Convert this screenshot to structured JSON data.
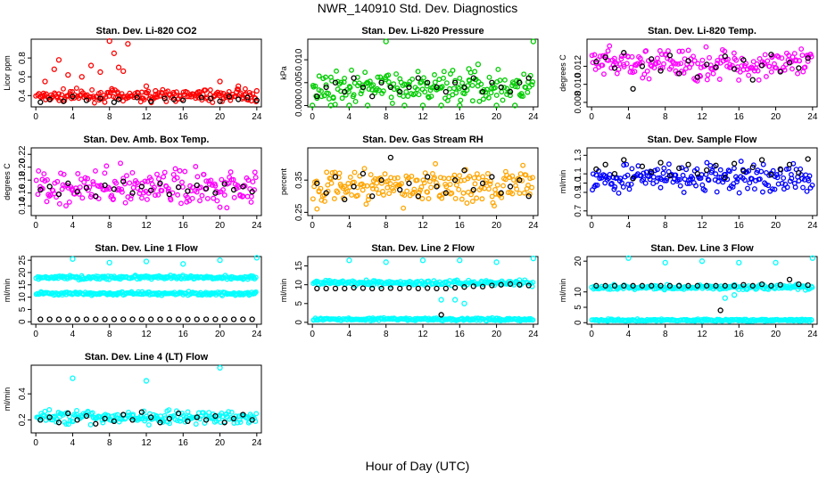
{
  "figure": {
    "title": "NWR_140910  Std. Dev. Diagnostics",
    "xlabel": "Hour of Day (UTC)"
  },
  "colors": {
    "reference": "#000000",
    "co2": "#ff0000",
    "pressure": "#00cc00",
    "temp": "#ff00ff",
    "rh": "#ffa500",
    "sample_flow": "#0000ff",
    "line_flow": "#00ffff"
  },
  "chart_data": [
    {
      "type": "scatter",
      "title": "Stan. Dev. Li-820 CO2",
      "ylabel": "Licor ppm",
      "xlim": [
        -0.5,
        24.5
      ],
      "ylim": [
        0.28,
        1.0
      ],
      "xticks": [
        "0",
        "4",
        "8",
        "12",
        "16",
        "20",
        "24"
      ],
      "yticks": [
        "0.4",
        "0.6",
        "0.8"
      ],
      "color_key": "co2",
      "bands": [
        {
          "center": 0.4,
          "spread": 0.05
        }
      ],
      "series": [
        {
          "values_x": [
            1,
            2,
            2.5,
            3.5,
            5,
            6,
            7,
            8,
            8.5,
            9,
            9.5,
            10,
            12,
            13,
            20,
            22,
            24
          ],
          "values_y": [
            0.55,
            0.68,
            0.78,
            0.62,
            0.6,
            0.72,
            0.65,
            0.98,
            0.85,
            0.7,
            0.66,
            0.95,
            0.5,
            0.45,
            0.55,
            0.5,
            0.45
          ]
        },
        {
          "values_x": [
            0.5,
            1.5,
            3,
            4,
            5.5,
            7,
            8.5,
            9,
            11,
            12.5,
            14,
            15,
            16,
            18,
            19,
            20,
            21,
            22,
            23,
            24
          ],
          "values_y": [
            0.33,
            0.36,
            0.34,
            0.39,
            0.35,
            0.37,
            0.33,
            0.36,
            0.38,
            0.34,
            0.37,
            0.36,
            0.35,
            0.38,
            0.37,
            0.34,
            0.39,
            0.36,
            0.38,
            0.35
          ],
          "role": "reference"
        }
      ]
    },
    {
      "type": "scatter",
      "title": "Stan. Dev. Li-820 Pressure",
      "ylabel": "kPa",
      "xlim": [
        -0.5,
        24.5
      ],
      "ylim": [
        -0.0003,
        0.0145
      ],
      "xticks": [
        "0",
        "4",
        "8",
        "12",
        "16",
        "20",
        "24"
      ],
      "yticks": [
        "0.000",
        "0.005",
        "0.010"
      ],
      "color_key": "pressure",
      "bands": [
        {
          "center": 0.004,
          "spread": 0.0025
        }
      ],
      "series": [
        {
          "values_x": [
            0,
            2,
            4,
            6,
            8,
            10,
            12,
            14,
            16,
            17,
            18,
            20,
            22,
            24
          ],
          "values_y": [
            0,
            0,
            0,
            0,
            0.014,
            0,
            0,
            0,
            0,
            0.008,
            0.009,
            0,
            0,
            0.014
          ]
        },
        {
          "values_x": [
            0.5,
            1.5,
            2.5,
            3.5,
            4.5,
            5.5,
            6.5,
            7.5,
            8.5,
            9.5,
            10.5,
            11.5,
            12.5,
            13.5,
            14.5,
            15.5,
            16.5,
            17.5,
            18.5,
            19.5,
            20.5,
            21.5,
            22.5,
            23.5
          ],
          "values_y": [
            0.002,
            0.004,
            0.005,
            0.003,
            0.006,
            0.004,
            0.002,
            0.005,
            0.004,
            0.003,
            0.004,
            0.006,
            0.005,
            0.004,
            0.003,
            0.005,
            0.004,
            0.006,
            0.003,
            0.005,
            0.004,
            0.003,
            0.005,
            0.006
          ],
          "role": "reference"
        }
      ]
    },
    {
      "type": "scatter",
      "title": "Stan. Dev. Li-820 Temp.",
      "ylabel": "degrees C",
      "xlim": [
        -0.5,
        24.5
      ],
      "ylim": [
        0.0075,
        0.015
      ],
      "xticks": [
        "0",
        "4",
        "8",
        "12",
        "16",
        "20",
        "24"
      ],
      "yticks": [
        "0.008",
        "0.010",
        "0.012"
      ],
      "color_key": "temp",
      "bands": [
        {
          "center": 0.0122,
          "spread": 0.0014
        }
      ],
      "series": [
        {
          "values_x": [
            0.5,
            1.5,
            2.5,
            3.5,
            4.5,
            5.5,
            6.5,
            7.5,
            8.5,
            9.5,
            10.5,
            11.5,
            12.5,
            13.5,
            14.5,
            15.5,
            16.5,
            17.5,
            18.5,
            19.5,
            20.5,
            21.5,
            22.5,
            23.5
          ],
          "values_y": [
            0.0125,
            0.013,
            0.0118,
            0.0135,
            0.0095,
            0.012,
            0.0128,
            0.0115,
            0.0132,
            0.0112,
            0.0126,
            0.0108,
            0.0122,
            0.0119,
            0.0131,
            0.0117,
            0.0127,
            0.0105,
            0.0121,
            0.0133,
            0.0114,
            0.0124,
            0.0118,
            0.0129
          ],
          "role": "reference"
        }
      ]
    },
    {
      "type": "scatter",
      "title": "Stan. Dev. Amb. Box Temp.",
      "ylabel": "degrees C",
      "xlim": [
        -0.5,
        24.5
      ],
      "ylim": [
        0.125,
        0.23
      ],
      "xticks": [
        "0",
        "4",
        "8",
        "12",
        "16",
        "20",
        "24"
      ],
      "yticks": [
        "0.14",
        "0.16",
        "0.18",
        "0.20",
        "0.22"
      ],
      "color_key": "temp",
      "bands": [
        {
          "center": 0.17,
          "spread": 0.022
        }
      ],
      "series": [
        {
          "values_x": [
            0.5,
            1.5,
            2.5,
            3.5,
            4.5,
            5.5,
            6.5,
            7.5,
            8.5,
            9.5,
            10.5,
            11.5,
            12.5,
            13.5,
            14.5,
            15.5,
            16.5,
            17.5,
            18.5,
            19.5,
            20.5,
            21.5,
            22.5,
            23.5
          ],
          "values_y": [
            0.165,
            0.17,
            0.158,
            0.175,
            0.162,
            0.168,
            0.155,
            0.172,
            0.166,
            0.178,
            0.16,
            0.17,
            0.164,
            0.175,
            0.158,
            0.169,
            0.163,
            0.172,
            0.167,
            0.16,
            0.174,
            0.165,
            0.17,
            0.162
          ],
          "role": "reference"
        }
      ]
    },
    {
      "type": "scatter",
      "title": "Stan. Dev. Gas Stream RH",
      "ylabel": "percent",
      "xlim": [
        -0.5,
        24.5
      ],
      "ylim": [
        0.24,
        0.45
      ],
      "xticks": [
        "0",
        "4",
        "8",
        "12",
        "16",
        "20",
        "24"
      ],
      "yticks": [
        "0.25",
        "0.35"
      ],
      "color_key": "rh",
      "bands": [
        {
          "center": 0.33,
          "spread": 0.045
        }
      ],
      "series": [
        {
          "values_x": [
            0.5,
            1.5,
            2.5,
            3.5,
            4.5,
            5.5,
            6.5,
            7.5,
            8.5,
            9.5,
            10.5,
            11.5,
            12.5,
            13.5,
            14.5,
            15.5,
            16.5,
            17.5,
            18.5,
            19.5,
            20.5,
            21.5,
            22.5,
            23.5
          ],
          "values_y": [
            0.34,
            0.31,
            0.36,
            0.29,
            0.33,
            0.37,
            0.3,
            0.35,
            0.42,
            0.32,
            0.34,
            0.3,
            0.36,
            0.33,
            0.31,
            0.35,
            0.38,
            0.32,
            0.34,
            0.36,
            0.31,
            0.33,
            0.35,
            0.3
          ],
          "role": "reference"
        }
      ]
    },
    {
      "type": "scatter",
      "title": "Stan. Dev. Sample Flow",
      "ylabel": "ml/min",
      "xlim": [
        -0.5,
        24.5
      ],
      "ylim": [
        0.65,
        1.38
      ],
      "xticks": [
        "0",
        "4",
        "8",
        "12",
        "16",
        "20",
        "24"
      ],
      "yticks": [
        "0.7",
        "0.9",
        "1.0",
        "1.1",
        "1.3"
      ],
      "color_key": "sample_flow",
      "bands": [
        {
          "center": 1.05,
          "spread": 0.12
        }
      ],
      "series": [
        {
          "values_x": [
            0.5,
            1.5,
            2.5,
            3.5,
            4.5,
            5.5,
            6.5,
            7.5,
            8.5,
            9.5,
            10.5,
            11.5,
            12.5,
            13.5,
            14.5,
            15.5,
            16.5,
            17.5,
            18.5,
            19.5,
            20.5,
            21.5,
            22.5,
            23.5
          ],
          "values_y": [
            1.15,
            1.2,
            1.1,
            1.25,
            1.05,
            1.18,
            1.12,
            1.22,
            1.08,
            1.16,
            1.2,
            1.1,
            1.14,
            1.19,
            1.06,
            1.21,
            1.13,
            1.17,
            1.25,
            1.09,
            1.15,
            1.2,
            1.11,
            1.26
          ],
          "role": "reference"
        }
      ]
    },
    {
      "type": "scatter",
      "title": "Stan. Dev. Line 1 Flow",
      "ylabel": "ml/min",
      "xlim": [
        -0.5,
        24.5
      ],
      "ylim": [
        -1,
        26.5
      ],
      "xticks": [
        "0",
        "4",
        "8",
        "12",
        "16",
        "20",
        "24"
      ],
      "yticks": [
        "0",
        "5",
        "10",
        "15",
        "20",
        "25"
      ],
      "color_key": "line_flow",
      "bands": [
        {
          "center": 18,
          "spread": 0.6
        },
        {
          "center": 11.5,
          "spread": 0.6
        }
      ],
      "series": [
        {
          "values_x": [
            4,
            8,
            12,
            16,
            20,
            24
          ],
          "values_y": [
            25.5,
            24,
            24.5,
            23.5,
            25,
            26
          ]
        },
        {
          "values_x": [
            0.5,
            1.5,
            2.5,
            3.5,
            4.5,
            5.5,
            6.5,
            7.5,
            8.5,
            9.5,
            10.5,
            11.5,
            12.5,
            13.5,
            14.5,
            15.5,
            16.5,
            17.5,
            18.5,
            19.5,
            20.5,
            21.5,
            22.5,
            23.5
          ],
          "values_y": [
            1,
            1,
            1,
            1,
            1,
            1,
            1,
            1,
            1,
            1,
            1,
            1,
            1,
            1,
            1,
            1,
            1,
            1,
            1,
            1,
            1,
            1,
            1,
            1
          ],
          "role": "reference"
        }
      ]
    },
    {
      "type": "scatter",
      "title": "Stan. Dev. Line 2 Flow",
      "ylabel": "ml/min",
      "xlim": [
        -0.5,
        24.5
      ],
      "ylim": [
        -0.5,
        17.5
      ],
      "xticks": [
        "0",
        "4",
        "8",
        "12",
        "16",
        "20",
        "24"
      ],
      "yticks": [
        "0",
        "5",
        "10",
        "15"
      ],
      "color_key": "line_flow",
      "bands": [
        {
          "center": 10.5,
          "spread": 0.6
        },
        {
          "center": 0.8,
          "spread": 0.3
        }
      ],
      "series": [
        {
          "values_x": [
            4,
            8,
            12,
            14,
            16,
            20,
            24,
            16.5,
            15.5
          ],
          "values_y": [
            16.5,
            16,
            16.5,
            6,
            16.5,
            16,
            17,
            5,
            6
          ]
        },
        {
          "values_x": [
            0.5,
            1.5,
            2.5,
            3.5,
            4.5,
            5.5,
            6.5,
            7.5,
            8.5,
            9.5,
            10.5,
            11.5,
            12.5,
            13.5,
            14,
            14.5,
            15.5,
            16.5,
            17.5,
            18.5,
            19.5,
            20.5,
            21.5,
            22.5,
            23.5
          ],
          "values_y": [
            9,
            9,
            9,
            9,
            9.2,
            9.1,
            9,
            9,
            9.1,
            9,
            9.2,
            9,
            9.1,
            9,
            2,
            9,
            9.2,
            9.4,
            9.6,
            9.5,
            9.8,
            10,
            10.2,
            10,
            9.8
          ],
          "role": "reference"
        }
      ]
    },
    {
      "type": "scatter",
      "title": "Stan. Dev. Line 3 Flow",
      "ylabel": "ml/min",
      "xlim": [
        -0.5,
        24.5
      ],
      "ylim": [
        -0.5,
        21.5
      ],
      "xticks": [
        "0",
        "4",
        "8",
        "12",
        "16",
        "20",
        "24"
      ],
      "yticks": [
        "0",
        "5",
        "10",
        "20"
      ],
      "color_key": "line_flow",
      "bands": [
        {
          "center": 11.5,
          "spread": 0.6
        },
        {
          "center": 0.8,
          "spread": 0.3
        }
      ],
      "series": [
        {
          "values_x": [
            4,
            8,
            12,
            16,
            20,
            24,
            14.5,
            15.5
          ],
          "values_y": [
            21,
            19.5,
            20,
            19.5,
            19.5,
            21,
            8,
            9
          ]
        },
        {
          "values_x": [
            0.5,
            1.5,
            2.5,
            3.5,
            4.5,
            5.5,
            6.5,
            7.5,
            8.5,
            9.5,
            10.5,
            11.5,
            12.5,
            13.5,
            14,
            14.5,
            15.5,
            16.5,
            17.5,
            18.5,
            19.5,
            20.5,
            21.5,
            22.5,
            23.5
          ],
          "values_y": [
            12,
            12,
            12,
            12,
            12,
            12,
            12,
            12,
            12,
            12,
            12,
            12,
            12,
            12,
            4,
            12,
            12,
            12.3,
            12,
            12.5,
            12,
            12.3,
            14,
            12.5,
            12.2
          ],
          "role": "reference"
        }
      ]
    },
    {
      "type": "scatter",
      "title": "Stan. Dev. Line 4 (LT) Flow",
      "ylabel": "ml/min",
      "xlim": [
        -0.5,
        24.5
      ],
      "ylim": [
        0.1,
        0.62
      ],
      "xticks": [
        "0",
        "4",
        "8",
        "12",
        "16",
        "20",
        "24"
      ],
      "yticks": [
        "0.2",
        "0.4"
      ],
      "color_key": "line_flow",
      "bands": [
        {
          "center": 0.22,
          "spread": 0.04
        }
      ],
      "series": [
        {
          "values_x": [
            4,
            12,
            20
          ],
          "values_y": [
            0.52,
            0.5,
            0.6
          ]
        },
        {
          "values_x": [
            0.5,
            1.5,
            2.5,
            3.5,
            4.5,
            5.5,
            6.5,
            7.5,
            8.5,
            9.5,
            10.5,
            11.5,
            12.5,
            13.5,
            14.5,
            15.5,
            16.5,
            17.5,
            18.5,
            19.5,
            20.5,
            21.5,
            22.5,
            23.5
          ],
          "values_y": [
            0.2,
            0.22,
            0.18,
            0.25,
            0.2,
            0.23,
            0.17,
            0.21,
            0.19,
            0.24,
            0.2,
            0.26,
            0.22,
            0.18,
            0.21,
            0.25,
            0.19,
            0.22,
            0.2,
            0.23,
            0.18,
            0.21,
            0.24,
            0.2
          ],
          "role": "reference"
        }
      ]
    }
  ]
}
